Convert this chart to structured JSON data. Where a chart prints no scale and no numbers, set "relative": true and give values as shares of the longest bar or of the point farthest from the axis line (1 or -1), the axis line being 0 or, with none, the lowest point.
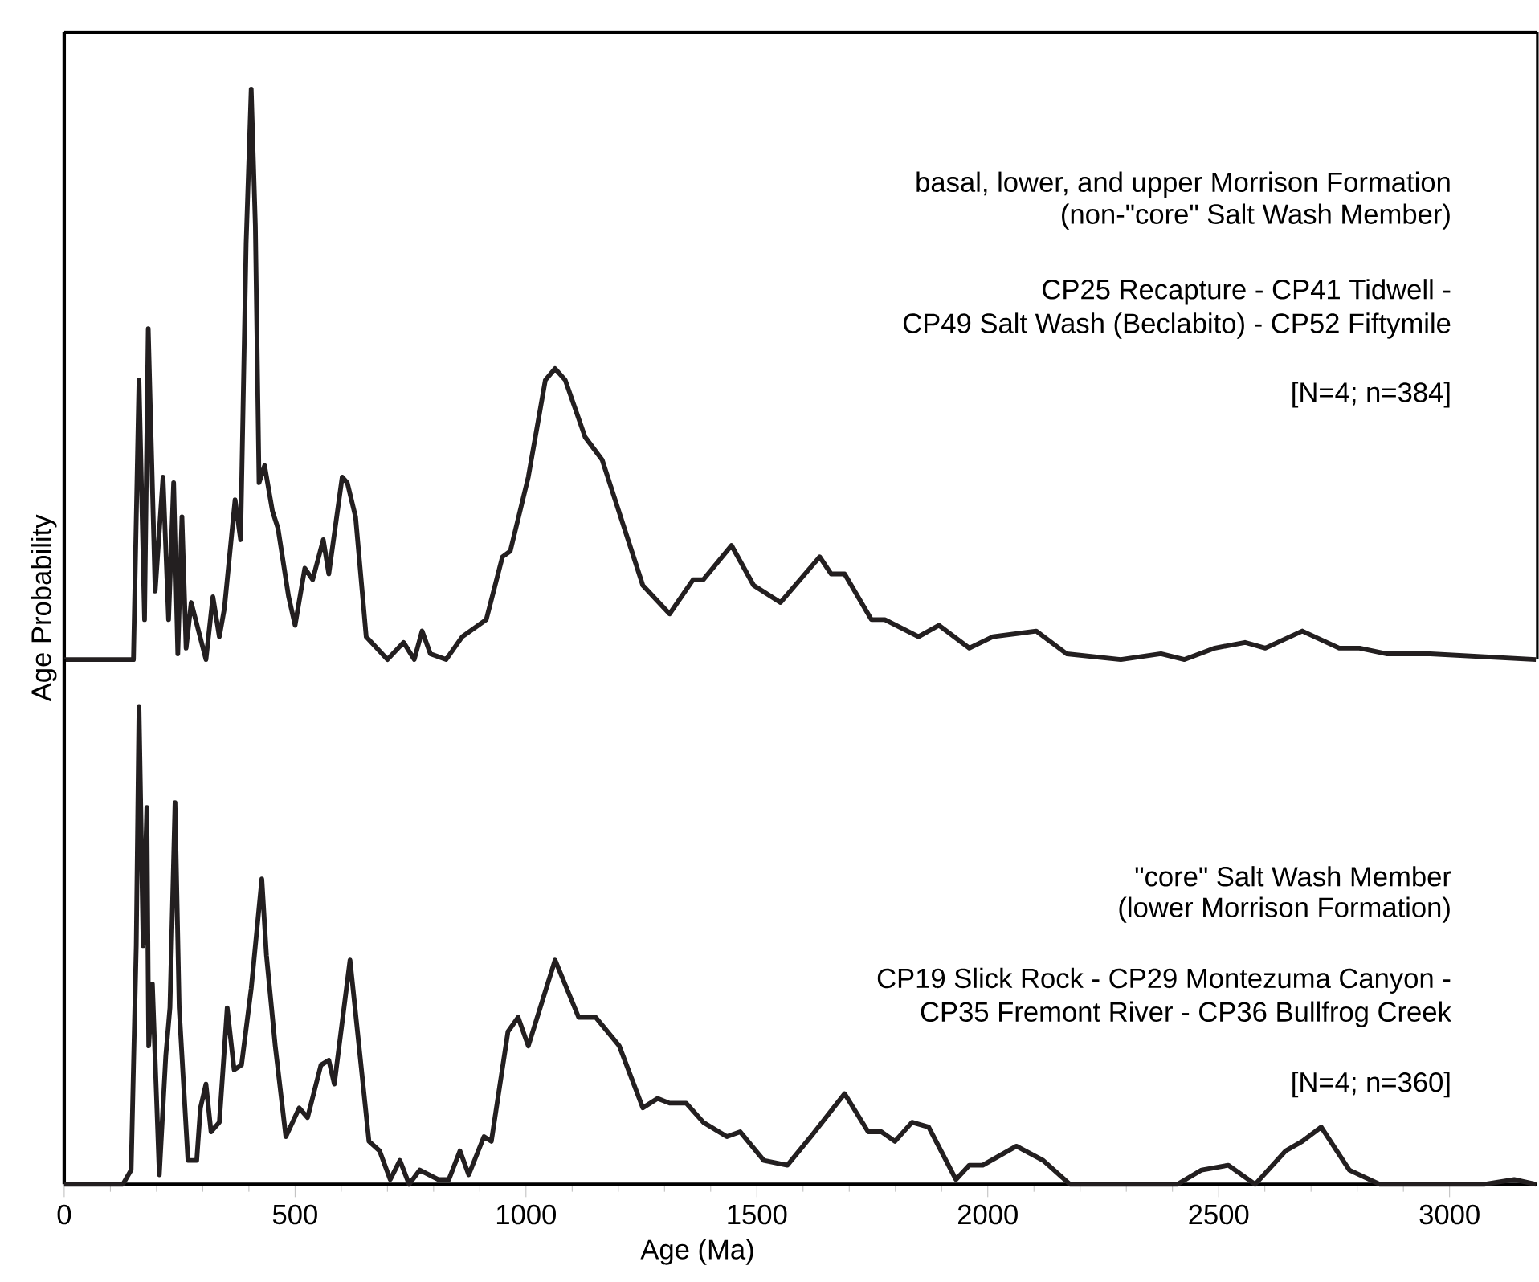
{
  "chart_data": [
    {
      "type": "line",
      "relative": true,
      "xlim": [
        0,
        3190
      ],
      "tick_labels": false,
      "ylabel": "Age Probability",
      "annotations": [
        "basal, lower, and upper Morrison Formation",
        "(non-\"core\" Salt Wash Member)",
        "CP25 Recapture - CP41 Tidwell -",
        "CP49 Salt Wash (Beclabito) - CP52 Fiftymile",
        "[N=4; n=384]"
      ],
      "series": [
        {
          "color": "#231f20",
          "x": [
            0,
            139,
            150,
            162,
            174,
            182,
            197,
            214,
            226,
            237,
            246,
            255,
            264,
            275,
            307,
            322,
            336,
            347,
            370,
            382,
            394,
            405,
            414,
            422,
            434,
            451,
            463,
            486,
            500,
            521,
            538,
            561,
            573,
            602,
            613,
            631,
            654,
            700,
            735,
            758,
            775,
            793,
            827,
            862,
            914,
            949,
            966,
            1005,
            1042,
            1063,
            1085,
            1128,
            1165,
            1253,
            1311,
            1362,
            1384,
            1445,
            1493,
            1551,
            1636,
            1661,
            1690,
            1748,
            1777,
            1850,
            1894,
            1960,
            2011,
            2105,
            2171,
            2288,
            2375,
            2426,
            2492,
            2557,
            2601,
            2681,
            2761,
            2805,
            2863,
            2958,
            3187
          ],
          "values": [
            0,
            0,
            0,
            0.49,
            0.07,
            0.58,
            0.12,
            0.32,
            0.07,
            0.31,
            0.01,
            0.25,
            0.02,
            0.1,
            0,
            0.11,
            0.04,
            0.09,
            0.28,
            0.21,
            0.73,
            1.0,
            0.76,
            0.31,
            0.34,
            0.26,
            0.23,
            0.11,
            0.06,
            0.16,
            0.14,
            0.21,
            0.15,
            0.32,
            0.31,
            0.25,
            0.04,
            0,
            0.03,
            0,
            0.05,
            0.01,
            0,
            0.04,
            0.07,
            0.18,
            0.19,
            0.32,
            0.49,
            0.51,
            0.49,
            0.39,
            0.35,
            0.13,
            0.08,
            0.14,
            0.14,
            0.2,
            0.13,
            0.1,
            0.18,
            0.15,
            0.15,
            0.07,
            0.07,
            0.04,
            0.06,
            0.02,
            0.04,
            0.05,
            0.01,
            0,
            0.01,
            0,
            0.02,
            0.03,
            0.02,
            0.05,
            0.02,
            0.02,
            0.01,
            0.01,
            0
          ]
        }
      ]
    },
    {
      "type": "line",
      "relative": true,
      "xlim": [
        0,
        3190
      ],
      "xticks": [
        0,
        500,
        1000,
        1500,
        2000,
        2500,
        3000
      ],
      "tick_labels": "x",
      "xlabel": "Age  (Ma)",
      "annotations": [
        "\"core\" Salt Wash Member",
        "(lower Morrison Formation)",
        "CP19 Slick Rock - CP29 Montezuma Canyon -",
        "CP35 Fremont River - CP36 Bullfrog Creek",
        "[N=4; n=360]"
      ],
      "series": [
        {
          "color": "#231f20",
          "x": [
            0,
            127,
            145,
            156,
            162,
            171,
            179,
            183,
            191,
            206,
            220,
            229,
            240,
            249,
            268,
            287,
            295,
            307,
            318,
            336,
            353,
            368,
            384,
            405,
            428,
            438,
            457,
            480,
            509,
            527,
            556,
            573,
            585,
            619,
            660,
            683,
            706,
            727,
            747,
            770,
            810,
            833,
            857,
            876,
            909,
            925,
            961,
            983,
            1005,
            1063,
            1114,
            1151,
            1202,
            1253,
            1285,
            1311,
            1347,
            1384,
            1435,
            1464,
            1515,
            1566,
            1617,
            1690,
            1741,
            1770,
            1799,
            1836,
            1872,
            1931,
            1960,
            1989,
            2062,
            2120,
            2178,
            2411,
            2463,
            2521,
            2579,
            2645,
            2681,
            2722,
            2783,
            2849,
            3075,
            3140,
            3187
          ],
          "values": [
            0,
            0,
            0.03,
            0.5,
            1.0,
            0.5,
            0.79,
            0.29,
            0.42,
            0.02,
            0.27,
            0.37,
            0.8,
            0.37,
            0.05,
            0.05,
            0.16,
            0.21,
            0.11,
            0.13,
            0.37,
            0.24,
            0.25,
            0.41,
            0.64,
            0.48,
            0.29,
            0.1,
            0.16,
            0.14,
            0.25,
            0.26,
            0.21,
            0.47,
            0.09,
            0.07,
            0.01,
            0.05,
            0,
            0.03,
            0.01,
            0.01,
            0.07,
            0.02,
            0.1,
            0.09,
            0.32,
            0.35,
            0.29,
            0.47,
            0.35,
            0.35,
            0.29,
            0.16,
            0.18,
            0.17,
            0.17,
            0.13,
            0.1,
            0.11,
            0.05,
            0.04,
            0.1,
            0.19,
            0.11,
            0.11,
            0.09,
            0.13,
            0.12,
            0.01,
            0.04,
            0.04,
            0.08,
            0.05,
            0,
            0,
            0.03,
            0.04,
            0,
            0.07,
            0.09,
            0.12,
            0.03,
            0,
            0,
            0.01,
            0
          ]
        }
      ]
    }
  ]
}
